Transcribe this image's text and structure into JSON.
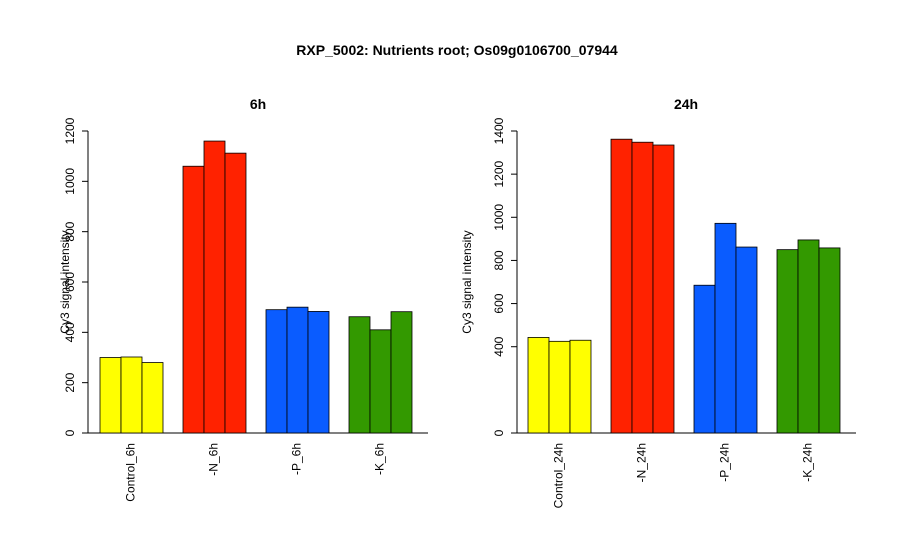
{
  "title": "RXP_5002: Nutrients root; Os09g0106700_07944",
  "colors": {
    "control": "#ffff00",
    "minus_n": "#ff2200",
    "minus_p": "#0a5cff",
    "minus_k": "#339900"
  },
  "chart_data": [
    {
      "type": "bar",
      "title": "6h",
      "ylabel": "Cy3 signal intensity",
      "ylim": [
        0,
        1200
      ],
      "yticks": [
        0,
        200,
        400,
        600,
        800,
        1000,
        1200
      ],
      "categories": [
        "Control_6h",
        "-N_6h",
        "-P_6h",
        "-K_6h"
      ],
      "category_colors": [
        "#ffff00",
        "#ff2200",
        "#0a5cff",
        "#339900"
      ],
      "values": [
        [
          300,
          302,
          280
        ],
        [
          1060,
          1160,
          1112
        ],
        [
          490,
          500,
          483
        ],
        [
          462,
          410,
          482
        ]
      ]
    },
    {
      "type": "bar",
      "title": "24h",
      "ylabel": "Cy3 signal intensity",
      "ylim": [
        0,
        1400
      ],
      "yticks": [
        0,
        400,
        600,
        800,
        1000,
        1200,
        1400
      ],
      "categories": [
        "Control_24h",
        "-N_24h",
        "-P_24h",
        "-K_24h"
      ],
      "category_colors": [
        "#ffff00",
        "#ff2200",
        "#0a5cff",
        "#339900"
      ],
      "values": [
        [
          443,
          425,
          430
        ],
        [
          1362,
          1348,
          1335
        ],
        [
          685,
          972,
          862
        ],
        [
          850,
          895,
          858
        ]
      ]
    }
  ]
}
